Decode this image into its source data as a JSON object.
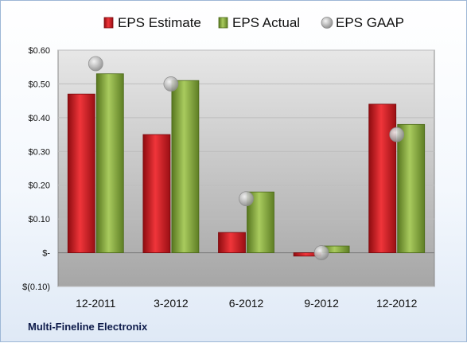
{
  "chart_data": {
    "type": "bar",
    "title": "",
    "xlabel": "",
    "ylabel": "",
    "categories": [
      "12-2011",
      "3-2012",
      "6-2012",
      "9-2012",
      "12-2012"
    ],
    "series": [
      {
        "name": "EPS Estimate",
        "kind": "bar",
        "color": "#c8161d",
        "values": [
          0.47,
          0.35,
          0.06,
          -0.01,
          0.44
        ]
      },
      {
        "name": "EPS Actual",
        "kind": "bar",
        "color": "#7ea33a",
        "values": [
          0.53,
          0.51,
          0.18,
          0.02,
          0.38
        ]
      },
      {
        "name": "EPS GAAP",
        "kind": "marker",
        "color": "#b0b0b0",
        "values": [
          0.56,
          0.5,
          0.16,
          0.0,
          0.35
        ]
      }
    ],
    "ylim": [
      -0.1,
      0.6
    ],
    "yticks": [
      0.6,
      0.5,
      0.4,
      0.3,
      0.2,
      0.1,
      0.0,
      -0.1
    ],
    "ytick_labels": [
      "$0.60",
      "$0.50",
      "$0.40",
      "$0.30",
      "$0.20",
      "$0.10",
      "$-",
      "$(0.10)"
    ],
    "grid": true,
    "legend": "top"
  },
  "footer": {
    "company": "Multi-Fineline Electronix"
  }
}
